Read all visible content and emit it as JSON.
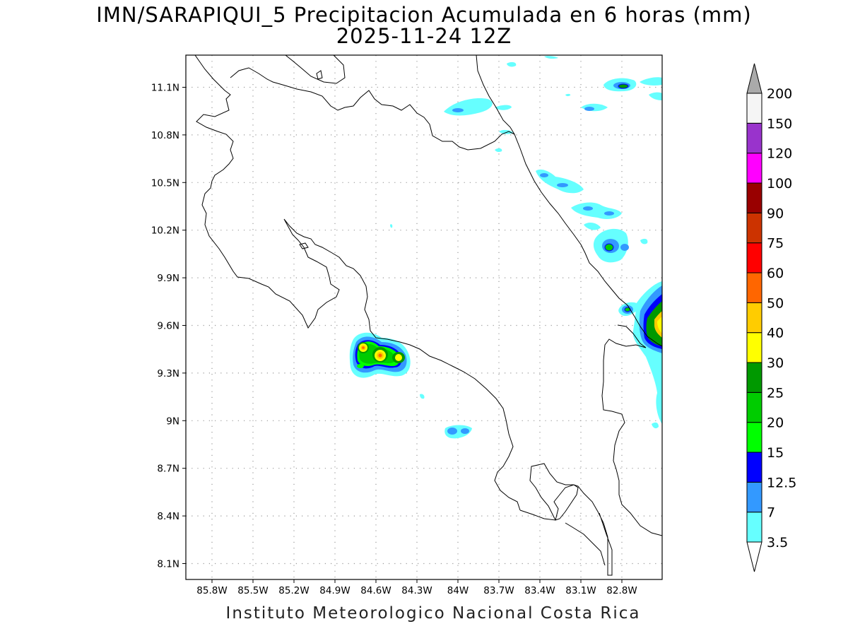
{
  "title": "IMN/SARAPIQUI_5 Precipitacion Acumulada en 6 horas (mm)",
  "subtitle": "2025-11-24 12Z",
  "footer": "Instituto Meteorologico Nacional Costa Rica",
  "map": {
    "lon_range": [
      -86.0,
      -83.0
    ],
    "lat_range": [
      8.0,
      11.3
    ],
    "lon_ticks": [
      "85.8W",
      "85.5W",
      "85.2W",
      "84.9W",
      "84.6W",
      "84.3W",
      "84W",
      "83.7W",
      "83.4W",
      "83.1W",
      "82.8W"
    ],
    "lat_ticks": [
      "11.1N",
      "10.8N",
      "10.5N",
      "10.2N",
      "9.9N",
      "9.6N",
      "9.3N",
      "9N",
      "8.7N",
      "8.4N",
      "8.1N"
    ],
    "grid": true,
    "grid_style": "dotted"
  },
  "colorbar": {
    "levels": [
      "3.5",
      "7",
      "12.5",
      "15",
      "20",
      "25",
      "30",
      "40",
      "50",
      "60",
      "75",
      "90",
      "100",
      "120",
      "150",
      "200"
    ],
    "colors": [
      "#ffffff",
      "#66ffff",
      "#3399ff",
      "#0000ff",
      "#00ff00",
      "#00cc00",
      "#009900",
      "#ffff00",
      "#ffcc00",
      "#ff6600",
      "#ff0000",
      "#cc3300",
      "#990000",
      "#ff00ff",
      "#9933cc",
      "#f5f5f5",
      "#aaaaaa"
    ]
  }
}
